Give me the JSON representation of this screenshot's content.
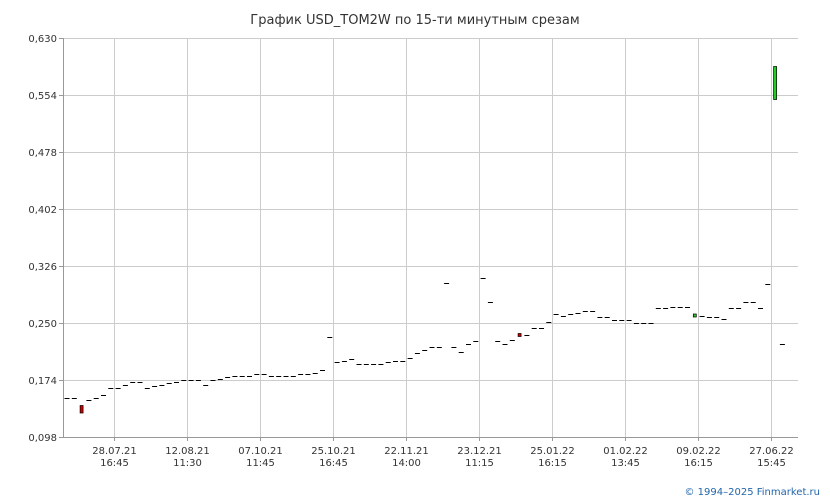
{
  "chart_data": {
    "type": "candlestick",
    "title": "График USD_TOM2W по 15-ти минутным срезам",
    "ylim": [
      0.098,
      0.63
    ],
    "y_ticks": [
      "0,630",
      "0,554",
      "0,478",
      "0,402",
      "0,326",
      "0,250",
      "0,174",
      "0,098"
    ],
    "y_tick_values": [
      0.63,
      0.554,
      0.478,
      0.402,
      0.326,
      0.25,
      0.174,
      0.098
    ],
    "x_ticks": [
      {
        "date": "28.07.21",
        "time": "16:45",
        "index": 6.5
      },
      {
        "date": "12.08.21",
        "time": "11:30",
        "index": 16.5
      },
      {
        "date": "07.10.21",
        "time": "11:45",
        "index": 26.5
      },
      {
        "date": "25.10.21",
        "time": "16:45",
        "index": 36.5
      },
      {
        "date": "22.11.21",
        "time": "14:00",
        "index": 46.5
      },
      {
        "date": "23.12.21",
        "time": "11:15",
        "index": 56.5
      },
      {
        "date": "25.01.22",
        "time": "16:15",
        "index": 66.5
      },
      {
        "date": "01.02.22",
        "time": "13:45",
        "index": 76.5
      },
      {
        "date": "09.02.22",
        "time": "16:15",
        "index": 86.5
      },
      {
        "date": "27.06.22",
        "time": "15:45",
        "index": 96.5
      }
    ],
    "series": [
      {
        "values": [
          [
            0.15,
            0.15
          ],
          [
            0.15,
            0.15
          ],
          [
            0.14,
            0.13
          ],
          [
            0.148,
            0.148
          ],
          [
            0.15,
            0.15
          ],
          [
            0.154,
            0.154
          ],
          [
            0.164,
            0.164
          ],
          [
            0.164,
            0.164
          ],
          [
            0.168,
            0.168
          ],
          [
            0.172,
            0.172
          ],
          [
            0.172,
            0.172
          ],
          [
            0.164,
            0.164
          ],
          [
            0.166,
            0.166
          ],
          [
            0.168,
            0.168
          ],
          [
            0.17,
            0.17
          ],
          [
            0.172,
            0.172
          ],
          [
            0.174,
            0.174
          ],
          [
            0.174,
            0.174
          ],
          [
            0.174,
            0.174
          ],
          [
            0.168,
            0.168
          ],
          [
            0.174,
            0.174
          ],
          [
            0.176,
            0.176
          ],
          [
            0.178,
            0.178
          ],
          [
            0.18,
            0.18
          ],
          [
            0.18,
            0.18
          ],
          [
            0.18,
            0.18
          ],
          [
            0.182,
            0.182
          ],
          [
            0.182,
            0.182
          ],
          [
            0.18,
            0.18
          ],
          [
            0.18,
            0.18
          ],
          [
            0.18,
            0.18
          ],
          [
            0.18,
            0.18
          ],
          [
            0.182,
            0.182
          ],
          [
            0.182,
            0.182
          ],
          [
            0.184,
            0.184
          ],
          [
            0.188,
            0.188
          ],
          [
            0.232,
            0.232
          ],
          [
            0.198,
            0.198
          ],
          [
            0.2,
            0.2
          ],
          [
            0.202,
            0.202
          ],
          [
            0.196,
            0.196
          ],
          [
            0.196,
            0.196
          ],
          [
            0.196,
            0.196
          ],
          [
            0.196,
            0.196
          ],
          [
            0.198,
            0.198
          ],
          [
            0.2,
            0.2
          ],
          [
            0.2,
            0.2
          ],
          [
            0.204,
            0.204
          ],
          [
            0.21,
            0.21
          ],
          [
            0.214,
            0.214
          ],
          [
            0.218,
            0.218
          ],
          [
            0.218,
            0.218
          ],
          [
            0.304,
            0.304
          ],
          [
            0.218,
            0.218
          ],
          [
            0.212,
            0.212
          ],
          [
            0.222,
            0.222
          ],
          [
            0.226,
            0.226
          ],
          [
            0.31,
            0.31
          ],
          [
            0.278,
            0.278
          ],
          [
            0.226,
            0.226
          ],
          [
            0.222,
            0.222
          ],
          [
            0.228,
            0.228
          ],
          [
            0.236,
            0.232
          ],
          [
            0.234,
            0.234
          ],
          [
            0.244,
            0.244
          ],
          [
            0.244,
            0.244
          ],
          [
            0.252,
            0.252
          ],
          [
            0.262,
            0.262
          ],
          [
            0.26,
            0.26
          ],
          [
            0.262,
            0.262
          ],
          [
            0.264,
            0.264
          ],
          [
            0.266,
            0.266
          ],
          [
            0.266,
            0.266
          ],
          [
            0.258,
            0.258
          ],
          [
            0.258,
            0.258
          ],
          [
            0.254,
            0.254
          ],
          [
            0.254,
            0.254
          ],
          [
            0.254,
            0.254
          ],
          [
            0.25,
            0.25
          ],
          [
            0.25,
            0.25
          ],
          [
            0.25,
            0.25
          ],
          [
            0.27,
            0.27
          ],
          [
            0.27,
            0.27
          ],
          [
            0.272,
            0.272
          ],
          [
            0.272,
            0.272
          ],
          [
            0.272,
            0.272
          ],
          [
            0.258,
            0.262
          ],
          [
            0.26,
            0.26
          ],
          [
            0.258,
            0.258
          ],
          [
            0.258,
            0.258
          ],
          [
            0.256,
            0.256
          ],
          [
            0.27,
            0.27
          ],
          [
            0.27,
            0.27
          ],
          [
            0.278,
            0.278
          ],
          [
            0.278,
            0.278
          ],
          [
            0.27,
            0.27
          ],
          [
            0.302,
            0.302
          ],
          [
            0.548,
            0.592
          ],
          [
            0.222,
            0.222
          ]
        ]
      }
    ],
    "colors": {
      "grid": "#cccccc",
      "axis": "#999999",
      "up": "#22cc22",
      "down": "#cc0000",
      "flat": "#000000",
      "text": "#333333",
      "copyright": "#2266aa"
    }
  },
  "footer": {
    "copyright": "© 1994–2025 Finmarket.ru"
  }
}
